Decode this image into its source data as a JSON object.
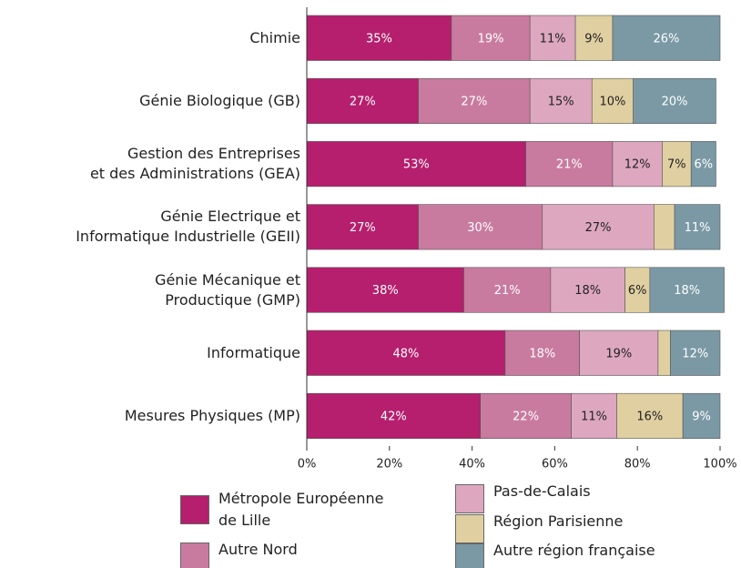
{
  "chart_data": {
    "type": "stacked_bar_horizontal",
    "categories": [
      "Chimie",
      "Génie Biologique (GB)",
      "Gestion des Entreprises\net des Administrations (GEA)",
      "Génie Electrique et\nInformatique Industrielle (GEII)",
      "Génie Mécanique et\nProductique (GMP)",
      "Informatique",
      "Mesures Physiques (MP)"
    ],
    "series": [
      {
        "name": "Métropole Européenne\nde Lille",
        "color": "#b51f6d",
        "values": [
          35,
          27,
          53,
          27,
          38,
          48,
          42
        ],
        "value_labels": [
          "35%",
          "27%",
          "53%",
          "27%",
          "38%",
          "48%",
          "42%"
        ]
      },
      {
        "name": "Autre Nord",
        "color": "#c97b9f",
        "values": [
          19,
          27,
          21,
          30,
          21,
          18,
          22
        ],
        "value_labels": [
          "19%",
          "27%",
          "21%",
          "30%",
          "21%",
          "18%",
          "22%"
        ]
      },
      {
        "name": "Pas-de-Calais",
        "color": "#dda7c0",
        "values": [
          11,
          15,
          12,
          27,
          18,
          19,
          11
        ],
        "value_labels": [
          "11%",
          "15%",
          "12%",
          "27%",
          "18%",
          "19%",
          "11%"
        ]
      },
      {
        "name": "Région Parisienne",
        "color": "#e0cfa1",
        "values": [
          9,
          10,
          7,
          5,
          6,
          3,
          16
        ],
        "value_labels": [
          "9%",
          "10%",
          "7%",
          null,
          "6%",
          null,
          "16%"
        ]
      },
      {
        "name": "Autre région française",
        "color": "#7a99a5",
        "values": [
          26,
          20,
          6,
          11,
          18,
          12,
          9
        ],
        "value_labels": [
          "26%",
          "20%",
          "6%",
          "11%",
          "18%",
          "12%",
          "9%"
        ]
      }
    ],
    "xlim": [
      0,
      100
    ],
    "xticks": [
      {
        "value": 0,
        "label": "0%"
      },
      {
        "value": 20,
        "label": "20%"
      },
      {
        "value": 40,
        "label": "40%"
      },
      {
        "value": 60,
        "label": "60%"
      },
      {
        "value": 80,
        "label": "80%"
      },
      {
        "value": 100,
        "label": "100%"
      }
    ]
  }
}
